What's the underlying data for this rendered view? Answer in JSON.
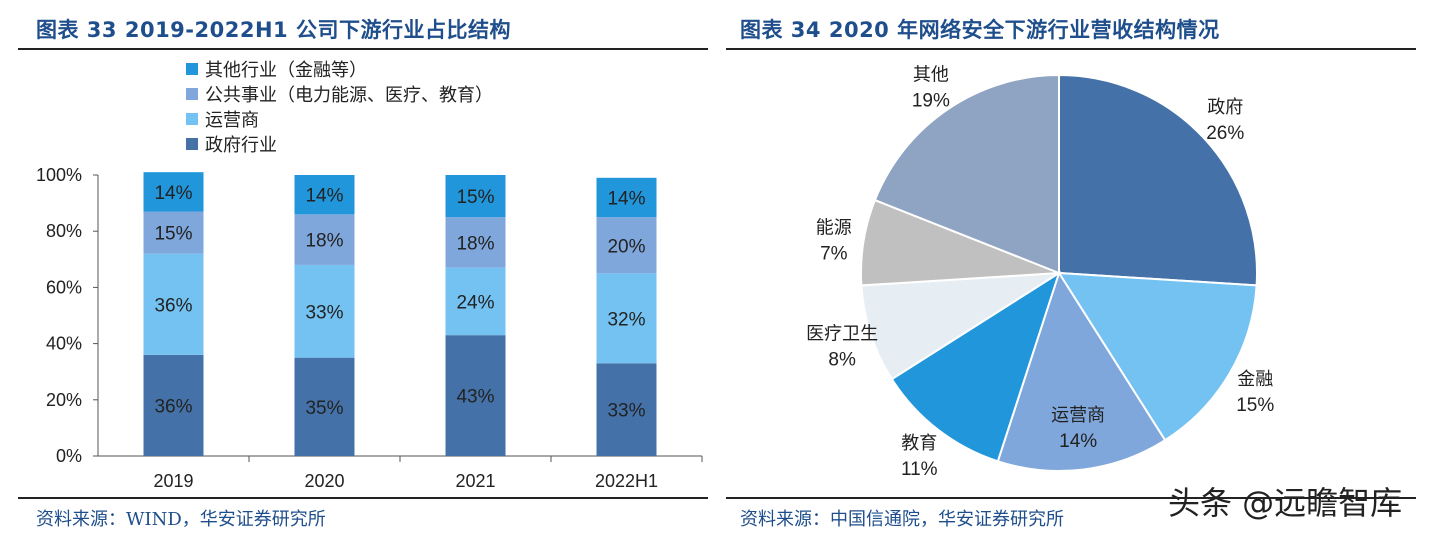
{
  "left": {
    "title": "图表 33 2019-2022H1 公司下游行业占比结构",
    "source": "资料来源：WIND，华安证券研究所"
  },
  "right": {
    "title": "图表 34 2020 年网络安全下游行业营收结构情况",
    "source": "资料来源：中国信通院，华安证券研究所"
  },
  "watermark": "头条 @远瞻智库",
  "chart_data": [
    {
      "type": "bar",
      "stacked": true,
      "categories": [
        "2019",
        "2020",
        "2021",
        "2022H1"
      ],
      "ylim": [
        0,
        100
      ],
      "yticks": [
        "0%",
        "20%",
        "40%",
        "60%",
        "80%",
        "100%"
      ],
      "legend_position": "top-left",
      "series": [
        {
          "name": "政府行业",
          "color": "#4472a8",
          "values": [
            36,
            35,
            43,
            33
          ],
          "labels": [
            "36%",
            "35%",
            "43%",
            "33%"
          ]
        },
        {
          "name": "运营商",
          "color": "#73c2f2",
          "values": [
            36,
            33,
            24,
            32
          ],
          "labels": [
            "36%",
            "33%",
            "24%",
            "32%"
          ]
        },
        {
          "name": "公共事业（电力能源、医疗、教育）",
          "color": "#7fa7dc",
          "values": [
            15,
            18,
            18,
            20
          ],
          "labels": [
            "15%",
            "18%",
            "18%",
            "20%"
          ]
        },
        {
          "name": "其他行业（金融等）",
          "color": "#2196db",
          "values": [
            14,
            14,
            15,
            14
          ],
          "labels": [
            "14%",
            "14%",
            "15%",
            "14%"
          ]
        }
      ],
      "legend_order": [
        3,
        2,
        1,
        0
      ]
    },
    {
      "type": "pie",
      "slices": [
        {
          "name": "政府",
          "value": 26,
          "label": "26%",
          "color": "#4472a8"
        },
        {
          "name": "金融",
          "value": 15,
          "label": "15%",
          "color": "#73c2f2"
        },
        {
          "name": "运营商",
          "value": 14,
          "label": "14%",
          "color": "#7fa7dc"
        },
        {
          "name": "教育",
          "value": 11,
          "label": "11%",
          "color": "#2196db"
        },
        {
          "name": "医疗卫生",
          "value": 8,
          "label": "8%",
          "color": "#e6eef4"
        },
        {
          "name": "能源",
          "value": 7,
          "label": "7%",
          "color": "#c0c0c0"
        },
        {
          "name": "其他",
          "value": 19,
          "label": "19%",
          "color": "#8fa4c2"
        }
      ]
    }
  ]
}
